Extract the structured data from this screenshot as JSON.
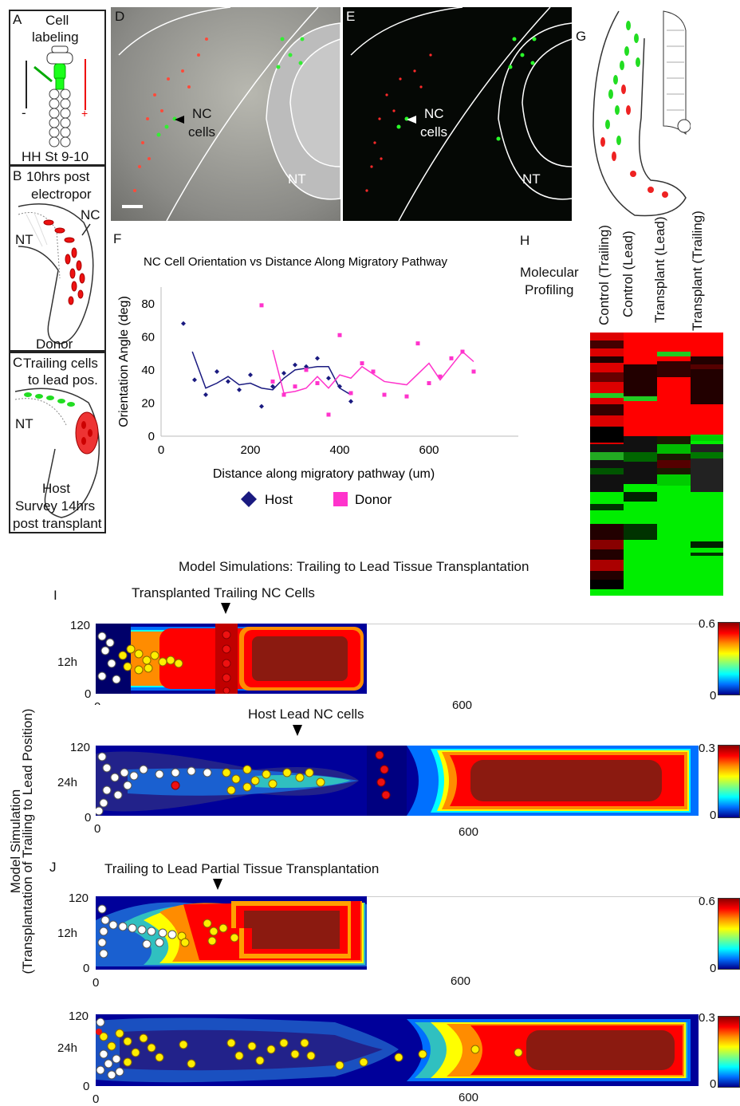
{
  "panels": {
    "A": {
      "letter": "A",
      "title1": "Cell",
      "title2": "labeling",
      "minus": "-",
      "plus": "+",
      "stage": "HH St 9-10"
    },
    "B": {
      "letter": "B",
      "title1": "10hrs post",
      "title2": "electropor",
      "nt": "NT",
      "nc": "NC",
      "donor": "Donor"
    },
    "C": {
      "letter": "C",
      "title1": "Trailing cells",
      "title2": "to lead pos.",
      "nt": "NT",
      "host": "Host",
      "survey1": "Survey 14hrs",
      "survey2": "post transplant"
    },
    "D": {
      "letter": "D",
      "nc1": "NC",
      "nc2": "cells",
      "nt": "NT"
    },
    "E": {
      "letter": "E",
      "nc1": "NC",
      "nc2": "cells",
      "nt": "NT"
    },
    "G": {
      "letter": "G"
    },
    "H": {
      "letter": "H",
      "label1": "Molecular",
      "label2": "Profiling",
      "columns": [
        "Control (Trailing)",
        "Control (Lead)",
        "Transplant (Lead)",
        "Transplant (Trailing)"
      ]
    },
    "F": {
      "letter": "F"
    },
    "I": {
      "letter": "I",
      "section_title": "Model Simulations:  Trailing to Lead Tissue Transplantation",
      "arrow1_label": "Transplanted Trailing NC Cells",
      "arrow2_label": "Host Lead NC cells"
    },
    "J": {
      "letter": "J",
      "arrow_label": "Trailing to Lead Partial Tissue Transplantation"
    },
    "side_label1": "Model Simulation",
    "side_label2": "(Transplantation of Trailing to Lead Position)"
  },
  "sims": [
    {
      "time": "12h",
      "y_top": "120",
      "y_bottom": "0",
      "x0": "0",
      "x600": "600",
      "cmax": "0.6",
      "cmin": "0"
    },
    {
      "time": "24h",
      "y_top": "120",
      "y_bottom": "0",
      "x0": "0",
      "x600": "600",
      "cmax": "0.3",
      "cmin": "0"
    },
    {
      "time": "12h",
      "y_top": "120",
      "y_bottom": "0",
      "x0": "0",
      "x600": "600",
      "cmax": "0.6",
      "cmin": "0"
    },
    {
      "time": "24h",
      "y_top": "120",
      "y_bottom": "0",
      "x0": "0",
      "x600": "600",
      "cmax": "0.3",
      "cmin": "0"
    }
  ],
  "chart_data": {
    "type": "scatter",
    "title": "NC Cell Orientation vs Distance Along Migratory Pathway",
    "xlabel": "Distance along migratory pathway (um)",
    "ylabel": "Orientation Angle (deg)",
    "xlim": [
      0,
      800
    ],
    "ylim": [
      0,
      90
    ],
    "xticks": [
      0,
      200,
      400,
      600
    ],
    "yticks": [
      0,
      20,
      40,
      60,
      80
    ],
    "legend_position": "bottom",
    "series": [
      {
        "name": "Host",
        "color": "#1a1a80",
        "marker": "diamond",
        "points": [
          [
            50,
            68
          ],
          [
            75,
            34
          ],
          [
            100,
            25
          ],
          [
            125,
            39
          ],
          [
            150,
            33
          ],
          [
            175,
            28
          ],
          [
            200,
            37
          ],
          [
            225,
            18
          ],
          [
            250,
            30
          ],
          [
            275,
            38
          ],
          [
            300,
            43
          ],
          [
            325,
            42
          ],
          [
            350,
            47
          ],
          [
            375,
            35
          ],
          [
            400,
            30
          ],
          [
            425,
            21
          ]
        ],
        "trend": [
          [
            70,
            51
          ],
          [
            100,
            29
          ],
          [
            125,
            32
          ],
          [
            150,
            36
          ],
          [
            175,
            31
          ],
          [
            200,
            32
          ],
          [
            225,
            29
          ],
          [
            250,
            28
          ],
          [
            275,
            35
          ],
          [
            300,
            40
          ],
          [
            325,
            41
          ],
          [
            350,
            42
          ],
          [
            375,
            42
          ],
          [
            400,
            29
          ],
          [
            425,
            25
          ]
        ]
      },
      {
        "name": "Donor",
        "color": "#ff33cc",
        "marker": "square",
        "points": [
          [
            225,
            79
          ],
          [
            250,
            33
          ],
          [
            275,
            25
          ],
          [
            300,
            30
          ],
          [
            325,
            40
          ],
          [
            350,
            32
          ],
          [
            375,
            13
          ],
          [
            400,
            61
          ],
          [
            425,
            26
          ],
          [
            450,
            44
          ],
          [
            475,
            39
          ],
          [
            500,
            25
          ],
          [
            550,
            24
          ],
          [
            575,
            56
          ],
          [
            600,
            32
          ],
          [
            625,
            36
          ],
          [
            650,
            47
          ],
          [
            675,
            51
          ],
          [
            700,
            39
          ]
        ],
        "trend": [
          [
            250,
            52
          ],
          [
            275,
            26
          ],
          [
            300,
            27
          ],
          [
            325,
            29
          ],
          [
            350,
            36
          ],
          [
            375,
            29
          ],
          [
            400,
            37
          ],
          [
            425,
            35
          ],
          [
            450,
            42
          ],
          [
            500,
            33
          ],
          [
            550,
            31
          ],
          [
            600,
            44
          ],
          [
            625,
            34
          ],
          [
            675,
            51
          ],
          [
            700,
            45
          ]
        ]
      }
    ]
  },
  "colors": {
    "host": "#1a1a80",
    "donor": "#ff33cc"
  }
}
